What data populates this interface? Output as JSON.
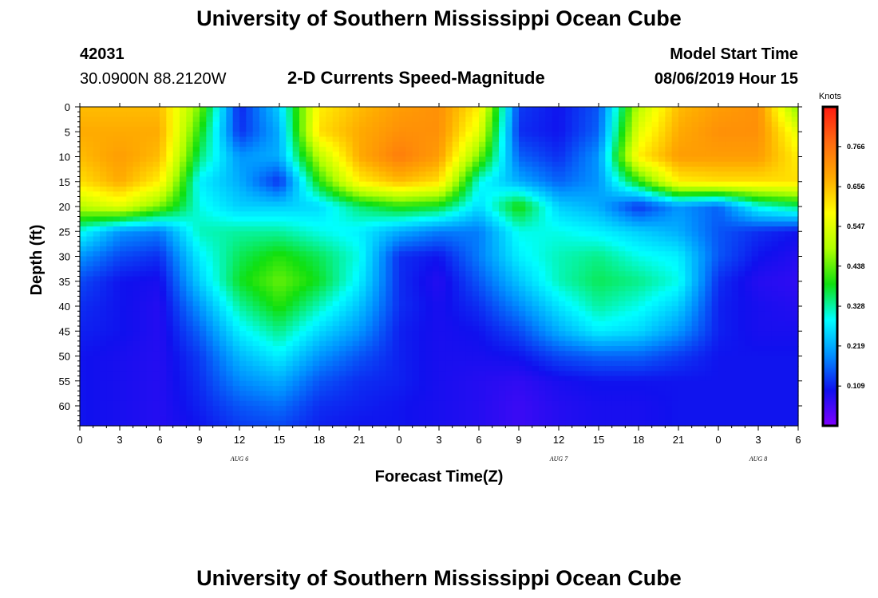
{
  "page": {
    "title_top": "University of Southern Mississippi Ocean Cube",
    "title_bottom": "University of Southern Mississippi Ocean Cube",
    "station_id": "42031",
    "station_coords": "30.0900N 88.2120W",
    "chart_subtitle": "2-D Currents Speed-Magnitude",
    "model_start_label": "Model Start Time",
    "model_start_value": "08/06/2019 Hour 15"
  },
  "chart_data": {
    "type": "heatmap",
    "title": "2-D Currents Speed-Magnitude",
    "xlabel": "Forecast Time(Z)",
    "ylabel": "Depth (ft)",
    "x_tick_labels": [
      "0",
      "3",
      "6",
      "9",
      "12",
      "15",
      "18",
      "21",
      "0",
      "3",
      "6",
      "9",
      "12",
      "15",
      "18",
      "21",
      "0",
      "3",
      "6"
    ],
    "x_range_hours": [
      0,
      54
    ],
    "date_labels": [
      {
        "label": "AUG 6",
        "hour": 12
      },
      {
        "label": "AUG 7",
        "hour": 36
      },
      {
        "label": "AUG 8",
        "hour": 51
      }
    ],
    "y_tick_labels": [
      "0",
      "5",
      "10",
      "15",
      "20",
      "25",
      "30",
      "35",
      "40",
      "45",
      "50",
      "55",
      "60"
    ],
    "ylim": [
      0,
      64
    ],
    "y_inverted": true,
    "colorbar": {
      "title": "Knots",
      "labels": [
        "0.766",
        "0.656",
        "0.547",
        "0.438",
        "0.328",
        "0.219",
        "0.109"
      ],
      "values": [
        0.766,
        0.656,
        0.547,
        0.438,
        0.328,
        0.219,
        0.109
      ],
      "range": [
        0,
        0.875
      ],
      "colors": [
        "#8000ff",
        "#1010ee",
        "#0090ff",
        "#00ffff",
        "#10e010",
        "#b0ff00",
        "#ffff00",
        "#ffaa00",
        "#ff6a10",
        "#ff1a10"
      ]
    },
    "x_nodes": [
      0,
      3,
      6,
      9,
      12,
      15,
      18,
      21,
      24,
      27,
      30,
      33,
      36,
      39,
      42,
      45,
      48,
      51,
      54
    ],
    "y_nodes": [
      0,
      5,
      10,
      15,
      20,
      25,
      30,
      35,
      40,
      45,
      50,
      55,
      60,
      64
    ],
    "values": [
      [
        0.66,
        0.66,
        0.66,
        0.45,
        0.11,
        0.25,
        0.6,
        0.66,
        0.7,
        0.72,
        0.6,
        0.13,
        0.1,
        0.15,
        0.5,
        0.66,
        0.7,
        0.72,
        0.45
      ],
      [
        0.68,
        0.68,
        0.68,
        0.4,
        0.12,
        0.22,
        0.62,
        0.68,
        0.72,
        0.72,
        0.55,
        0.12,
        0.1,
        0.16,
        0.55,
        0.68,
        0.72,
        0.72,
        0.55
      ],
      [
        0.66,
        0.7,
        0.66,
        0.35,
        0.2,
        0.22,
        0.5,
        0.68,
        0.75,
        0.7,
        0.45,
        0.16,
        0.12,
        0.2,
        0.6,
        0.7,
        0.7,
        0.7,
        0.6
      ],
      [
        0.62,
        0.68,
        0.6,
        0.28,
        0.22,
        0.12,
        0.4,
        0.6,
        0.66,
        0.62,
        0.3,
        0.22,
        0.16,
        0.2,
        0.4,
        0.6,
        0.62,
        0.62,
        0.62
      ],
      [
        0.5,
        0.55,
        0.45,
        0.3,
        0.25,
        0.25,
        0.26,
        0.35,
        0.4,
        0.38,
        0.26,
        0.4,
        0.25,
        0.22,
        0.12,
        0.2,
        0.16,
        0.3,
        0.35
      ],
      [
        0.3,
        0.2,
        0.18,
        0.32,
        0.33,
        0.33,
        0.3,
        0.28,
        0.22,
        0.18,
        0.18,
        0.3,
        0.3,
        0.28,
        0.25,
        0.22,
        0.15,
        0.12,
        0.1
      ],
      [
        0.2,
        0.14,
        0.12,
        0.28,
        0.36,
        0.4,
        0.36,
        0.3,
        0.12,
        0.1,
        0.18,
        0.28,
        0.32,
        0.34,
        0.3,
        0.28,
        0.15,
        0.1,
        0.08
      ],
      [
        0.14,
        0.1,
        0.09,
        0.25,
        0.38,
        0.44,
        0.38,
        0.28,
        0.12,
        0.08,
        0.15,
        0.24,
        0.32,
        0.36,
        0.34,
        0.3,
        0.12,
        0.08,
        0.07
      ],
      [
        0.12,
        0.1,
        0.08,
        0.2,
        0.33,
        0.4,
        0.32,
        0.24,
        0.12,
        0.09,
        0.12,
        0.19,
        0.27,
        0.33,
        0.3,
        0.25,
        0.11,
        0.09,
        0.08
      ],
      [
        0.11,
        0.1,
        0.08,
        0.16,
        0.28,
        0.34,
        0.26,
        0.2,
        0.11,
        0.09,
        0.1,
        0.14,
        0.22,
        0.28,
        0.26,
        0.2,
        0.11,
        0.09,
        0.09
      ],
      [
        0.1,
        0.09,
        0.08,
        0.13,
        0.23,
        0.28,
        0.2,
        0.15,
        0.11,
        0.09,
        0.09,
        0.1,
        0.14,
        0.16,
        0.16,
        0.13,
        0.1,
        0.1,
        0.1
      ],
      [
        0.1,
        0.09,
        0.08,
        0.12,
        0.19,
        0.22,
        0.15,
        0.12,
        0.11,
        0.09,
        0.08,
        0.07,
        0.09,
        0.1,
        0.1,
        0.1,
        0.1,
        0.1,
        0.1
      ],
      [
        0.1,
        0.09,
        0.08,
        0.11,
        0.15,
        0.17,
        0.12,
        0.11,
        0.1,
        0.09,
        0.08,
        0.06,
        0.08,
        0.09,
        0.09,
        0.1,
        0.1,
        0.1,
        0.1
      ],
      [
        0.1,
        0.09,
        0.08,
        0.1,
        0.13,
        0.14,
        0.11,
        0.1,
        0.1,
        0.09,
        0.08,
        0.06,
        0.08,
        0.09,
        0.09,
        0.1,
        0.1,
        0.1,
        0.1
      ]
    ]
  }
}
